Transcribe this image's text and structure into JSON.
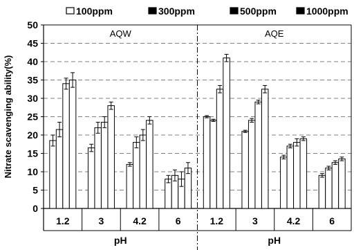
{
  "chart_data": {
    "type": "bar",
    "ylabel": "Nitrate scavenging ability(%)",
    "ylim": [
      0,
      50
    ],
    "yticks": [
      0,
      5,
      10,
      15,
      20,
      25,
      30,
      35,
      40,
      45,
      50
    ],
    "grid": "dashed horizontal",
    "legend_position": "top",
    "series_names": [
      "100ppm",
      "300ppm",
      "500ppm",
      "1000ppm"
    ],
    "panels": [
      {
        "title": "AQW",
        "xlabel": "pH",
        "categories": [
          "1.2",
          "3",
          "4.2",
          "6"
        ],
        "series": [
          {
            "name": "100ppm",
            "values": [
              18.5,
              16.5,
              12.0,
              8.0
            ],
            "errors": [
              1.5,
              1.0,
              0.5,
              1.0
            ]
          },
          {
            "name": "300ppm",
            "values": [
              21.5,
              22.0,
              18.0,
              9.0
            ],
            "errors": [
              2.0,
              1.5,
              1.5,
              1.5
            ]
          },
          {
            "name": "500ppm",
            "values": [
              34.0,
              23.5,
              20.0,
              8.0
            ],
            "errors": [
              1.5,
              1.5,
              1.5,
              2.0
            ]
          },
          {
            "name": "1000ppm",
            "values": [
              35.0,
              28.0,
              24.0,
              11.0
            ],
            "errors": [
              2.0,
              1.0,
              1.0,
              1.5
            ]
          }
        ]
      },
      {
        "title": "AQE",
        "xlabel": "pH",
        "categories": [
          "1.2",
          "3",
          "4.2",
          "6"
        ],
        "series": [
          {
            "name": "100ppm",
            "values": [
              25.0,
              21.0,
              14.0,
              9.0
            ],
            "errors": [
              0.3,
              0.3,
              0.5,
              0.5
            ]
          },
          {
            "name": "300ppm",
            "values": [
              24.0,
              24.0,
              17.0,
              11.0
            ],
            "errors": [
              0.3,
              0.5,
              0.5,
              0.5
            ]
          },
          {
            "name": "500ppm",
            "values": [
              32.5,
              29.0,
              18.0,
              12.5
            ],
            "errors": [
              1.0,
              0.5,
              1.0,
              0.5
            ]
          },
          {
            "name": "1000ppm",
            "values": [
              41.0,
              32.5,
              19.0,
              13.5
            ],
            "errors": [
              1.0,
              1.0,
              0.5,
              0.5
            ]
          }
        ]
      }
    ]
  }
}
